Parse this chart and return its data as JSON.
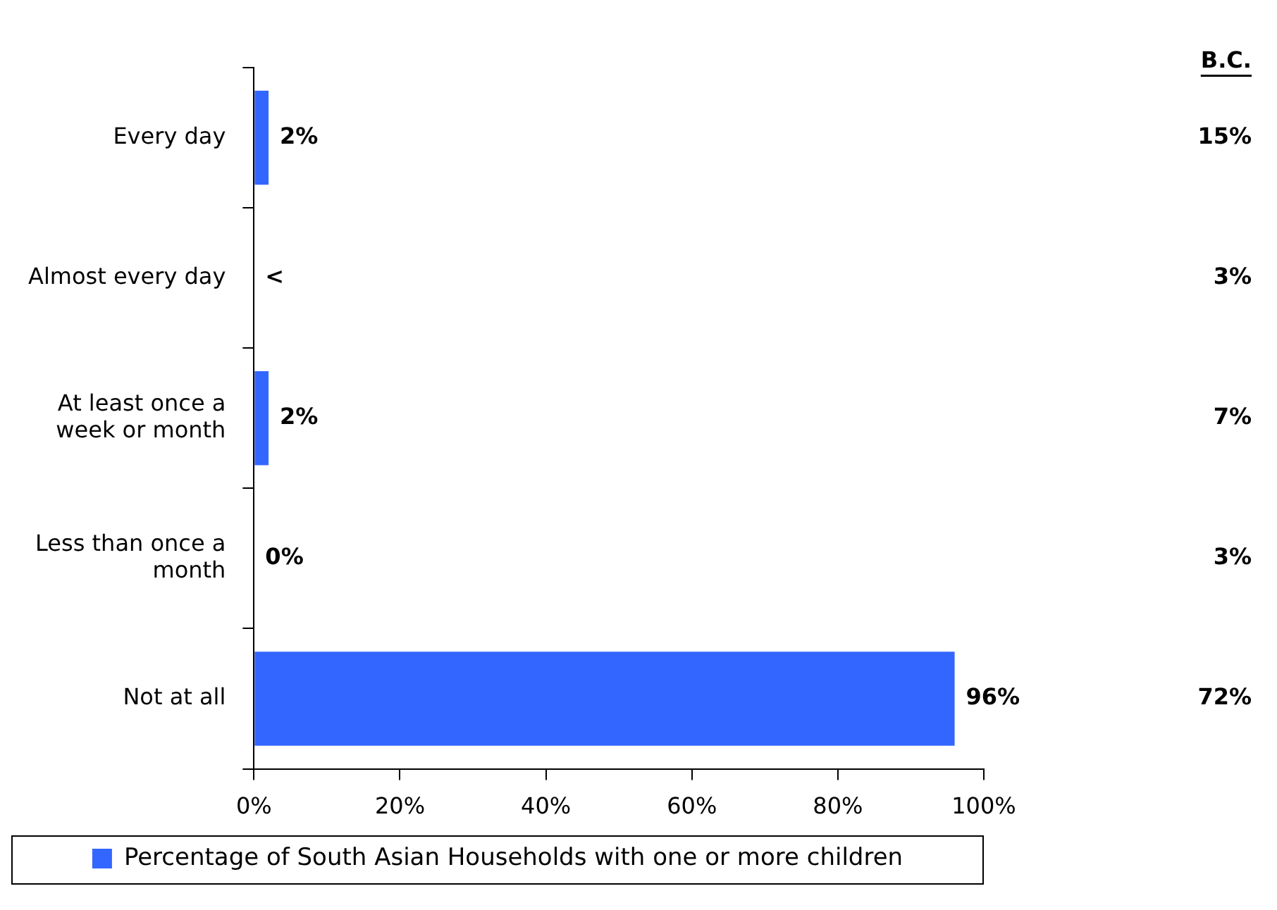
{
  "chart_data": {
    "type": "bar",
    "orientation": "horizontal",
    "categories": [
      "Every day",
      "Almost every day",
      "At least once a week or month",
      "Less than once a month",
      "Not at all"
    ],
    "series": [
      {
        "name": "Percentage of South Asian Households with one or more children",
        "color": "#3366ff",
        "values": [
          2,
          0,
          2,
          0,
          96
        ],
        "value_labels": [
          "2%",
          "<",
          "2%",
          "0%",
          "96%"
        ]
      }
    ],
    "xlim": [
      0,
      100
    ],
    "xticks": [
      {
        "value": 0,
        "label": "0%"
      },
      {
        "value": 20,
        "label": "20%"
      },
      {
        "value": 40,
        "label": "40%"
      },
      {
        "value": 60,
        "label": "60%"
      },
      {
        "value": 80,
        "label": "80%"
      },
      {
        "value": 100,
        "label": "100%"
      }
    ],
    "annotations": [
      "B.C.",
      "15%",
      "3%",
      "7%",
      "3%",
      "72%"
    ],
    "grid": false,
    "legend": "bottom"
  }
}
